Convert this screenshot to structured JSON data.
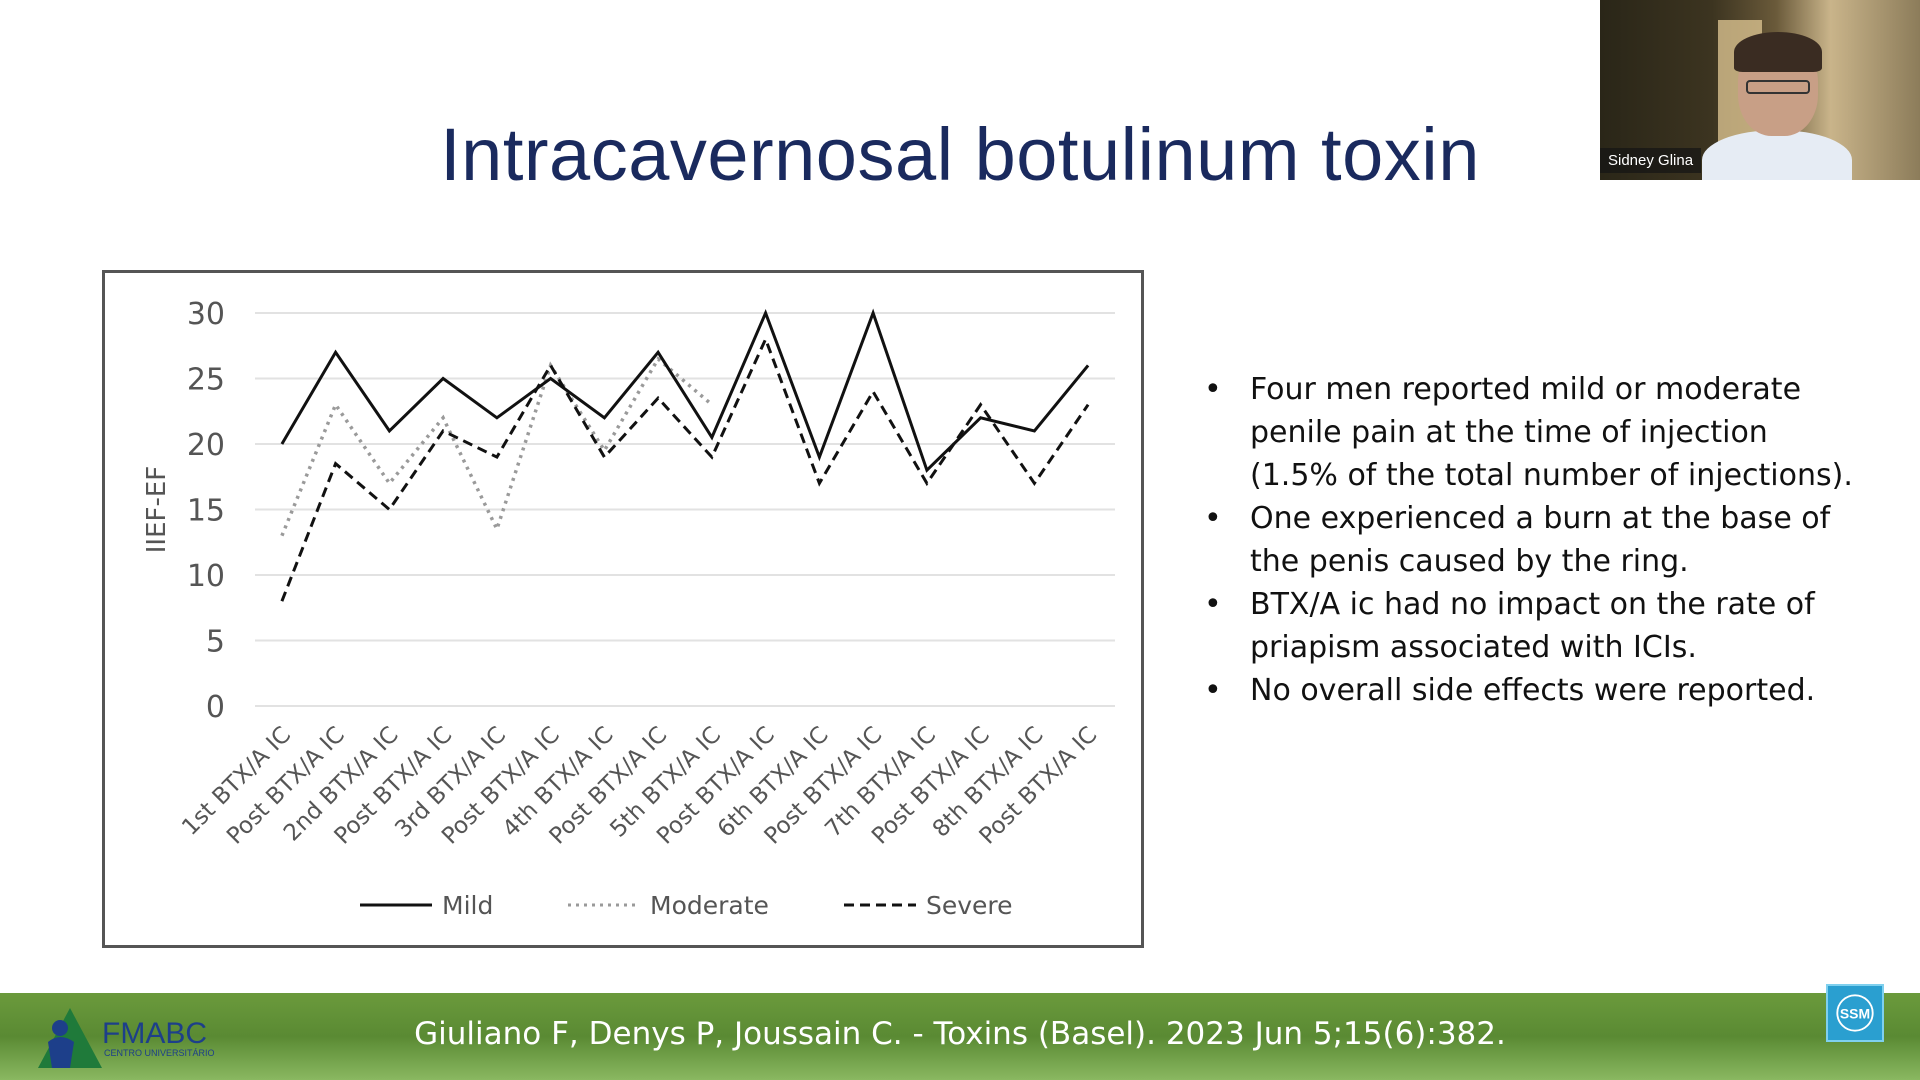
{
  "slide": {
    "title": "Intracavernosal botulinum toxin"
  },
  "webcam": {
    "name": "Sidney Glina"
  },
  "bullets": [
    "Four men reported mild or moderate penile pain at the time of injection (1.5% of the total number of injections).",
    "One experienced a burn at the base of the penis caused by the ring.",
    "BTX/A ic had no impact on the rate of priapism associated with ICIs.",
    "No overall side effects were reported."
  ],
  "footer": {
    "reference": "Giuliano F, Denys P, Joussain C. - Toxins (Basel). 2023 Jun 5;15(6):382.",
    "logo_text": "FMABC",
    "logo_subtext": "CENTRO UNIVERSITÁRIO",
    "badge_text": "SSM"
  },
  "chart_data": {
    "type": "line",
    "ylabel": "IIEF-EF",
    "xlabel": "",
    "ylim": [
      0,
      30
    ],
    "yticks": [
      0,
      5,
      10,
      15,
      20,
      25,
      30
    ],
    "grid": true,
    "legend_position": "bottom",
    "categories": [
      "1st BTX/A IC",
      "Post BTX/A IC",
      "2nd BTX/A IC",
      "Post BTX/A IC",
      "3rd BTX/A IC",
      "Post BTX/A IC",
      "4th BTX/A IC",
      "Post BTX/A IC",
      "5th BTX/A IC",
      "Post BTX/A IC",
      "6th BTX/A IC",
      "Post BTX/A IC",
      "7th BTX/A IC",
      "Post BTX/A IC",
      "8th BTX/A IC",
      "Post BTX/A IC"
    ],
    "series": [
      {
        "name": "Mild",
        "style": "solid",
        "color": "#111111",
        "values": [
          20,
          27,
          21,
          25,
          22,
          25,
          22,
          27,
          20.5,
          30,
          19,
          30,
          18,
          22,
          21,
          26
        ]
      },
      {
        "name": "Moderate",
        "style": "dotted",
        "color": "#9a9a9a",
        "values": [
          13,
          23,
          17,
          22,
          13.5,
          26,
          19.5,
          26.5,
          23,
          null,
          null,
          null,
          null,
          null,
          null,
          null
        ]
      },
      {
        "name": "Severe",
        "style": "dashed",
        "color": "#111111",
        "values": [
          8,
          18.5,
          15,
          21,
          19,
          26,
          19,
          23.5,
          19,
          28,
          17,
          24,
          17,
          23,
          17,
          23
        ]
      }
    ]
  }
}
